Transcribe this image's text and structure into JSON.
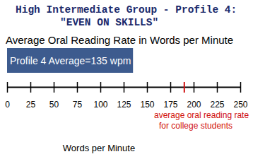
{
  "chart_data": {
    "type": "bar",
    "orientation": "horizontal",
    "title": [
      "High Intermediate Group - Profile 4:",
      "\"EVEN ON SKILLS\""
    ],
    "subtitle": "Average Oral Reading Rate in Words per Minute",
    "x_label": "Words per Minute",
    "categories": [
      null
    ],
    "values": [
      135
    ],
    "value_labels": [
      "Profile 4 Average=135 wpm"
    ],
    "data_labels": true,
    "color": "#3d5b8e",
    "xlim": [
      0,
      250
    ],
    "xticks": [
      0,
      25,
      50,
      75,
      100,
      125,
      150,
      175,
      200,
      225,
      250
    ],
    "grid": false,
    "annotations": [
      {
        "x": 190,
        "text": [
          "average oral reading rate",
          "for college students"
        ],
        "color": "#d01010"
      }
    ]
  }
}
